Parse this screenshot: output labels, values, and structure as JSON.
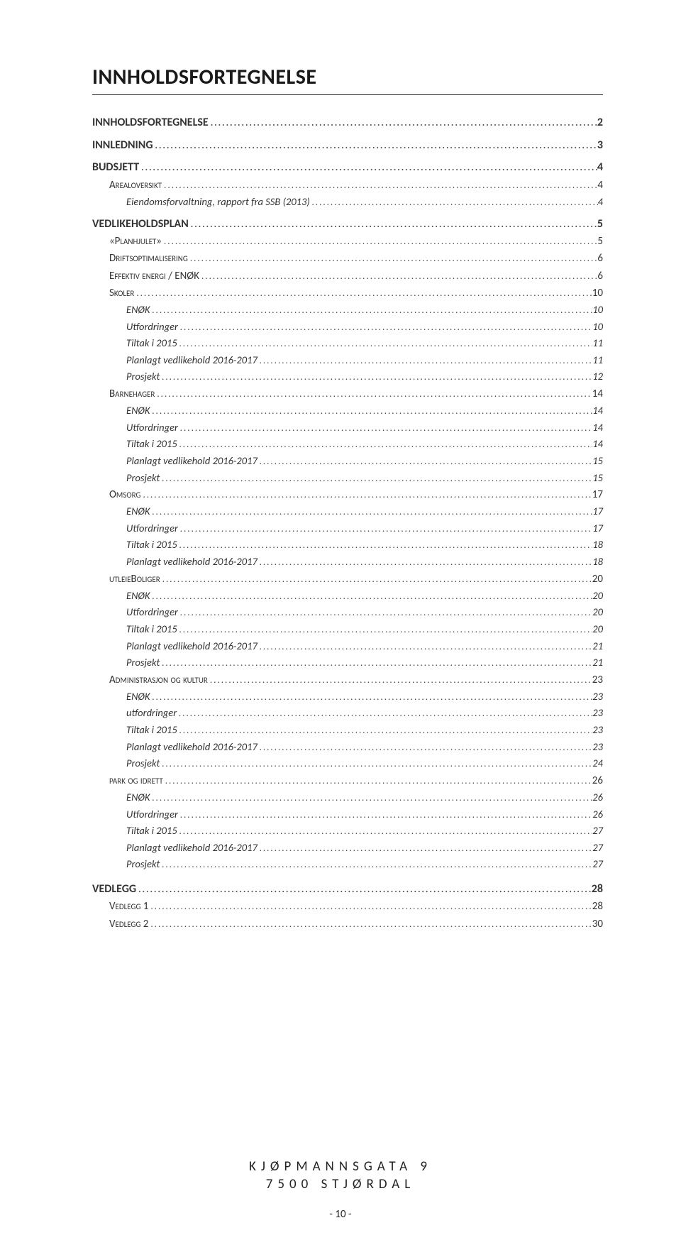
{
  "title": "INNHOLDSFORTEGNELSE",
  "toc": [
    {
      "lvl": 0,
      "label": "INNHOLDSFORTEGNELSE",
      "page": "2"
    },
    {
      "lvl": 0,
      "label": "INNLEDNING",
      "page": "3"
    },
    {
      "lvl": 0,
      "label": "BUDSJETT",
      "page": "4"
    },
    {
      "lvl": 1,
      "label": "Arealoversikt",
      "page": "4"
    },
    {
      "lvl": 2,
      "label": "Eiendomsforvaltning, rapport fra SSB (2013)",
      "page": "4"
    },
    {
      "lvl": 0,
      "label": "VEDLIKEHOLDSPLAN",
      "page": "5"
    },
    {
      "lvl": 1,
      "label": "«Planhjulet»",
      "page": "5"
    },
    {
      "lvl": 1,
      "label": "Driftsoptimalisering",
      "page": "6"
    },
    {
      "lvl": 1,
      "label": "Effektiv energi / ENØK",
      "page": "6"
    },
    {
      "lvl": 1,
      "label": "Skoler",
      "page": "10"
    },
    {
      "lvl": 2,
      "label": "ENØK",
      "page": "10"
    },
    {
      "lvl": 2,
      "label": "Utfordringer",
      "page": "10"
    },
    {
      "lvl": 2,
      "label": "Tiltak i 2015",
      "page": "11"
    },
    {
      "lvl": 2,
      "label": "Planlagt vedlikehold 2016-2017",
      "page": "11"
    },
    {
      "lvl": 2,
      "label": "Prosjekt",
      "page": "12"
    },
    {
      "lvl": 1,
      "label": "Barnehager",
      "page": "14"
    },
    {
      "lvl": 2,
      "label": "ENØK",
      "page": "14"
    },
    {
      "lvl": 2,
      "label": "Utfordringer",
      "page": "14"
    },
    {
      "lvl": 2,
      "label": "Tiltak i 2015",
      "page": "14"
    },
    {
      "lvl": 2,
      "label": "Planlagt vedlikehold 2016-2017",
      "page": "15"
    },
    {
      "lvl": 2,
      "label": "Prosjekt",
      "page": "15"
    },
    {
      "lvl": 1,
      "label": "Omsorg",
      "page": "17"
    },
    {
      "lvl": 2,
      "label": "ENØK",
      "page": "17"
    },
    {
      "lvl": 2,
      "label": "Utfordringer",
      "page": "17"
    },
    {
      "lvl": 2,
      "label": "Tiltak i 2015",
      "page": "18"
    },
    {
      "lvl": 2,
      "label": "Planlagt vedlikehold 2016-2017",
      "page": "18"
    },
    {
      "lvl": 1,
      "label": "utleieBoliger",
      "page": "20"
    },
    {
      "lvl": 2,
      "label": "ENØK",
      "page": "20"
    },
    {
      "lvl": 2,
      "label": "Utfordringer",
      "page": "20"
    },
    {
      "lvl": 2,
      "label": "Tiltak i 2015",
      "page": "20"
    },
    {
      "lvl": 2,
      "label": "Planlagt vedlikehold 2016-2017",
      "page": "21"
    },
    {
      "lvl": 2,
      "label": "Prosjekt",
      "page": "21"
    },
    {
      "lvl": 1,
      "label": "Administrasjon og kultur",
      "page": "23"
    },
    {
      "lvl": 2,
      "label": "ENØK",
      "page": "23"
    },
    {
      "lvl": 2,
      "label": "utfordringer",
      "page": "23"
    },
    {
      "lvl": 2,
      "label": "Tiltak i 2015",
      "page": "23"
    },
    {
      "lvl": 2,
      "label": "Planlagt vedlikehold 2016-2017",
      "page": "23"
    },
    {
      "lvl": 2,
      "label": "Prosjekt",
      "page": "24"
    },
    {
      "lvl": 1,
      "label": "park og idrett",
      "page": "26"
    },
    {
      "lvl": 2,
      "label": "ENØK",
      "page": "26"
    },
    {
      "lvl": 2,
      "label": "Utfordringer",
      "page": "26"
    },
    {
      "lvl": 2,
      "label": "Tiltak i 2015",
      "page": "27"
    },
    {
      "lvl": 2,
      "label": "Planlagt vedlikehold 2016-2017",
      "page": "27"
    },
    {
      "lvl": 2,
      "label": "Prosjekt",
      "page": "27"
    },
    {
      "lvl": 0,
      "label": "VEDLEGG",
      "page": "28",
      "gap": true
    },
    {
      "lvl": 1,
      "label": "Vedlegg 1",
      "page": "28"
    },
    {
      "lvl": 1,
      "label": "Vedlegg 2",
      "page": "30"
    }
  ],
  "footer": {
    "line1": "KJØPMANNSGATA 9",
    "line2": "7500 STJØRDAL"
  },
  "page_number": "- 10 -",
  "colors": {
    "background": "#ffffff",
    "text": "#333333",
    "title_border": "#333333"
  },
  "typography": {
    "title_fontsize": 30,
    "body_fontsize": 15,
    "footer_fontsize": 19,
    "footer_letterspacing": 7
  }
}
